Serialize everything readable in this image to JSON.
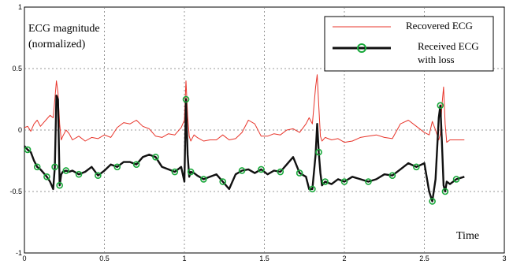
{
  "chart_data": {
    "type": "line",
    "ylabel_lines": [
      "ECG magnitude",
      "(normalized)"
    ],
    "xlabel": "Time",
    "xlim": [
      0,
      3
    ],
    "ylim": [
      -1,
      1
    ],
    "xticks": [
      "0",
      "0.5",
      "1",
      "1.5",
      "2",
      "2.5",
      "3"
    ],
    "yticks": [
      "-1",
      "-0.5",
      "0",
      "0.5",
      "1"
    ],
    "grid": true,
    "legend_position": "top-right",
    "series": [
      {
        "name": "Recovered ECG",
        "color": "#e8352b",
        "style": "thin-line",
        "x": [
          0.0,
          0.02,
          0.04,
          0.06,
          0.08,
          0.1,
          0.12,
          0.14,
          0.16,
          0.18,
          0.19,
          0.2,
          0.21,
          0.22,
          0.23,
          0.24,
          0.26,
          0.28,
          0.3,
          0.34,
          0.38,
          0.42,
          0.46,
          0.5,
          0.54,
          0.58,
          0.62,
          0.66,
          0.7,
          0.74,
          0.78,
          0.82,
          0.86,
          0.9,
          0.94,
          0.98,
          1.0,
          1.01,
          1.02,
          1.03,
          1.04,
          1.06,
          1.08,
          1.12,
          1.16,
          1.2,
          1.24,
          1.28,
          1.32,
          1.36,
          1.4,
          1.44,
          1.48,
          1.52,
          1.56,
          1.6,
          1.64,
          1.68,
          1.72,
          1.76,
          1.78,
          1.8,
          1.82,
          1.83,
          1.84,
          1.85,
          1.86,
          1.88,
          1.92,
          1.96,
          2.0,
          2.05,
          2.1,
          2.15,
          2.2,
          2.25,
          2.3,
          2.35,
          2.4,
          2.45,
          2.5,
          2.53,
          2.55,
          2.57,
          2.59,
          2.6,
          2.61,
          2.62,
          2.63,
          2.64,
          2.66,
          2.7,
          2.75
        ],
        "y": [
          0.02,
          0.03,
          -0.01,
          0.05,
          0.08,
          0.03,
          0.06,
          0.09,
          0.12,
          0.1,
          0.25,
          0.4,
          0.3,
          0.05,
          -0.08,
          -0.05,
          0.0,
          -0.03,
          -0.08,
          -0.05,
          -0.09,
          -0.06,
          -0.07,
          -0.04,
          -0.06,
          0.02,
          0.06,
          0.05,
          0.08,
          0.03,
          0.01,
          -0.05,
          -0.06,
          -0.03,
          -0.04,
          0.02,
          0.08,
          0.4,
          0.12,
          -0.05,
          -0.09,
          -0.04,
          -0.06,
          -0.09,
          -0.08,
          -0.08,
          -0.04,
          -0.08,
          -0.07,
          -0.02,
          0.08,
          0.05,
          -0.05,
          -0.05,
          -0.03,
          -0.04,
          0.0,
          0.01,
          -0.02,
          0.05,
          0.1,
          0.05,
          0.35,
          0.45,
          0.2,
          -0.05,
          -0.09,
          -0.06,
          -0.08,
          -0.07,
          -0.1,
          -0.09,
          -0.06,
          -0.05,
          -0.04,
          -0.06,
          -0.07,
          0.05,
          0.08,
          0.03,
          -0.02,
          -0.04,
          0.07,
          0.0,
          -0.08,
          -0.03,
          0.2,
          0.35,
          0.05,
          -0.1,
          -0.08,
          -0.08,
          -0.08
        ]
      },
      {
        "name": "Received ECG with loss",
        "legend_lines": [
          "Received ECG",
          "with loss"
        ],
        "color": "#111111",
        "marker_color": "#18a83a",
        "style": "thick-line-circles",
        "x": [
          0.0,
          0.02,
          0.04,
          0.06,
          0.08,
          0.1,
          0.12,
          0.14,
          0.16,
          0.18,
          0.19,
          0.2,
          0.21,
          0.22,
          0.23,
          0.24,
          0.26,
          0.28,
          0.3,
          0.34,
          0.38,
          0.42,
          0.46,
          0.5,
          0.54,
          0.58,
          0.62,
          0.66,
          0.7,
          0.74,
          0.78,
          0.82,
          0.86,
          0.9,
          0.94,
          0.98,
          1.0,
          1.01,
          1.02,
          1.03,
          1.04,
          1.06,
          1.08,
          1.12,
          1.16,
          1.2,
          1.24,
          1.28,
          1.32,
          1.36,
          1.4,
          1.44,
          1.48,
          1.52,
          1.56,
          1.6,
          1.64,
          1.68,
          1.72,
          1.76,
          1.78,
          1.8,
          1.82,
          1.83,
          1.84,
          1.85,
          1.86,
          1.88,
          1.92,
          1.96,
          2.0,
          2.05,
          2.1,
          2.15,
          2.2,
          2.25,
          2.3,
          2.35,
          2.4,
          2.45,
          2.5,
          2.53,
          2.55,
          2.57,
          2.59,
          2.6,
          2.61,
          2.62,
          2.63,
          2.64,
          2.66,
          2.7,
          2.75
        ],
        "y": [
          -0.13,
          -0.16,
          -0.18,
          -0.25,
          -0.3,
          -0.32,
          -0.35,
          -0.38,
          -0.42,
          -0.48,
          -0.3,
          0.28,
          0.25,
          -0.45,
          -0.36,
          -0.34,
          -0.33,
          -0.34,
          -0.33,
          -0.36,
          -0.34,
          -0.3,
          -0.37,
          -0.33,
          -0.28,
          -0.3,
          -0.26,
          -0.26,
          -0.28,
          -0.22,
          -0.2,
          -0.22,
          -0.3,
          -0.32,
          -0.34,
          -0.3,
          -0.42,
          0.25,
          -0.2,
          -0.38,
          -0.34,
          -0.35,
          -0.37,
          -0.4,
          -0.38,
          -0.36,
          -0.42,
          -0.48,
          -0.36,
          -0.33,
          -0.32,
          -0.35,
          -0.32,
          -0.36,
          -0.33,
          -0.34,
          -0.28,
          -0.22,
          -0.35,
          -0.38,
          -0.48,
          -0.48,
          -0.2,
          0.05,
          -0.18,
          -0.35,
          -0.45,
          -0.42,
          -0.44,
          -0.4,
          -0.42,
          -0.38,
          -0.4,
          -0.42,
          -0.4,
          -0.36,
          -0.37,
          -0.32,
          -0.27,
          -0.3,
          -0.27,
          -0.5,
          -0.58,
          -0.4,
          0.1,
          0.2,
          -0.1,
          -0.45,
          -0.5,
          -0.42,
          -0.44,
          -0.4,
          -0.38
        ]
      }
    ]
  }
}
